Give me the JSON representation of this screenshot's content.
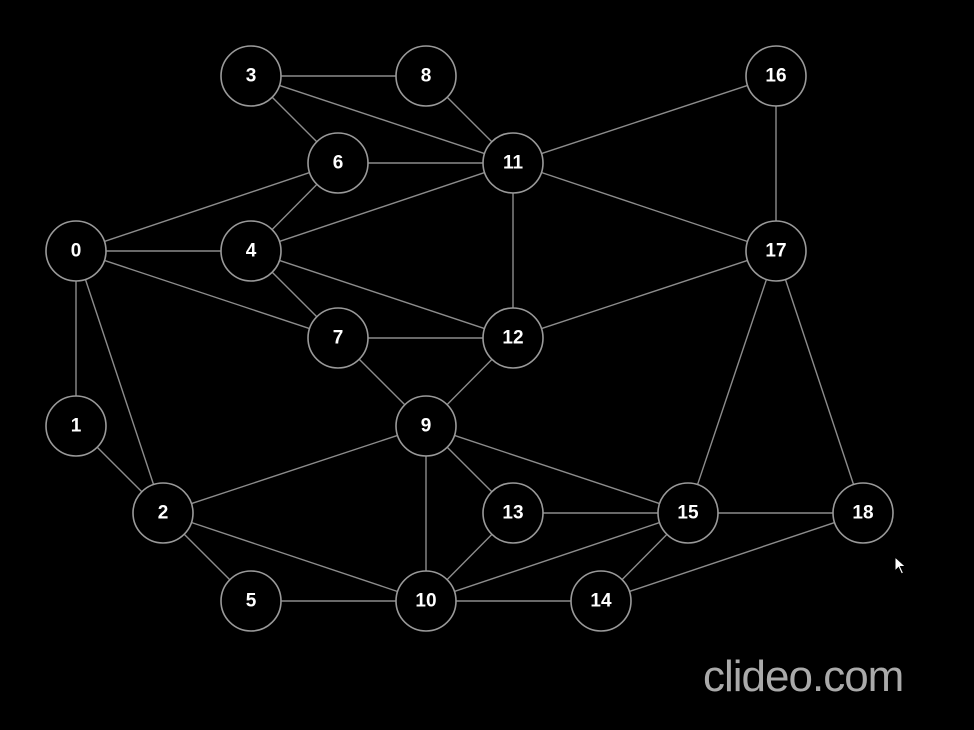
{
  "graph": {
    "nodes": [
      "0",
      "1",
      "2",
      "3",
      "4",
      "5",
      "6",
      "7",
      "8",
      "9",
      "10",
      "11",
      "12",
      "13",
      "14",
      "15",
      "16",
      "17",
      "18"
    ],
    "edges": [
      [
        "3",
        "8"
      ],
      [
        "3",
        "6"
      ],
      [
        "3",
        "11"
      ],
      [
        "8",
        "11"
      ],
      [
        "6",
        "11"
      ],
      [
        "16",
        "11"
      ],
      [
        "16",
        "17"
      ],
      [
        "0",
        "6"
      ],
      [
        "0",
        "4"
      ],
      [
        "0",
        "7"
      ],
      [
        "0",
        "1"
      ],
      [
        "0",
        "2"
      ],
      [
        "4",
        "6"
      ],
      [
        "4",
        "11"
      ],
      [
        "4",
        "7"
      ],
      [
        "4",
        "12"
      ],
      [
        "11",
        "12"
      ],
      [
        "11",
        "17"
      ],
      [
        "7",
        "12"
      ],
      [
        "7",
        "9"
      ],
      [
        "12",
        "9"
      ],
      [
        "12",
        "17"
      ],
      [
        "1",
        "2"
      ],
      [
        "2",
        "9"
      ],
      [
        "2",
        "5"
      ],
      [
        "2",
        "10"
      ],
      [
        "5",
        "10"
      ],
      [
        "9",
        "10"
      ],
      [
        "9",
        "13"
      ],
      [
        "9",
        "15"
      ],
      [
        "13",
        "15"
      ],
      [
        "13",
        "10"
      ],
      [
        "10",
        "15"
      ],
      [
        "10",
        "14"
      ],
      [
        "14",
        "15"
      ],
      [
        "14",
        "18"
      ],
      [
        "15",
        "18"
      ],
      [
        "15",
        "17"
      ],
      [
        "17",
        "18"
      ]
    ]
  },
  "colors": {
    "background": "#000000",
    "node_fill": "#000000",
    "node_stroke": "#9a9a9a",
    "edge": "#8c8c8c",
    "label": "#ffffff"
  },
  "watermark": {
    "text": "clideo.com"
  },
  "icons": {
    "cursor": "arrow-cursor-icon"
  }
}
